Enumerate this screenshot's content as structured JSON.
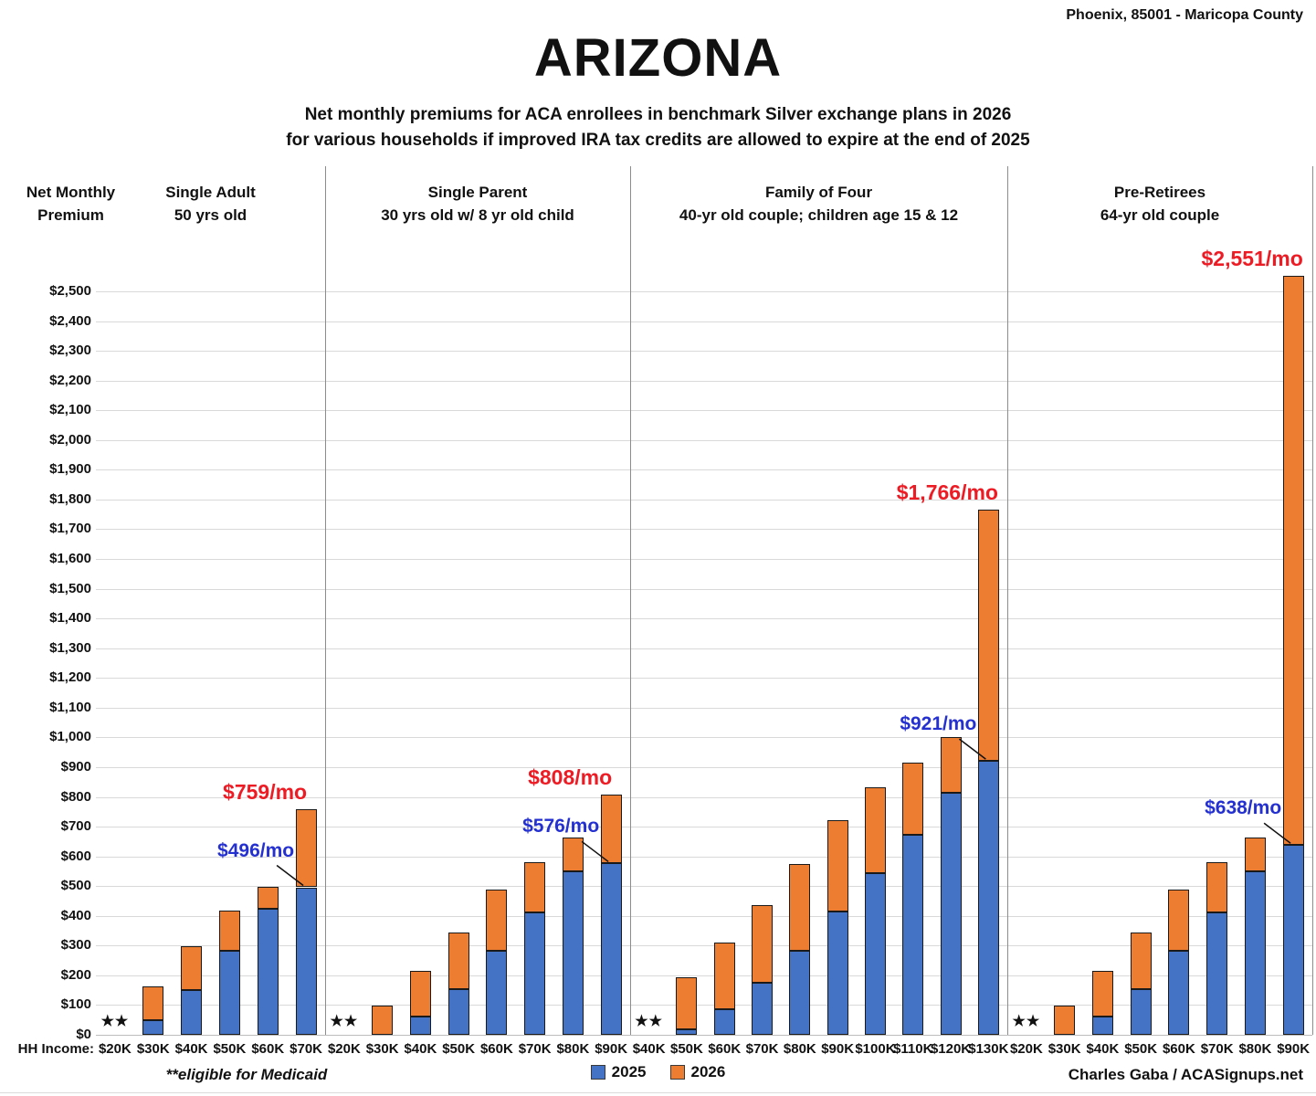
{
  "header": {
    "location": "Phoenix, 85001 - Maricopa County",
    "title": "ARIZONA",
    "subtitle_line1": "Net monthly premiums for ACA enrollees in benchmark Silver exchange plans in 2026",
    "subtitle_line2": "for various households if improved IRA tax credits are allowed to expire at the end of 2025"
  },
  "y_axis": {
    "label_line1": "Net Monthly",
    "label_line2": "Premium",
    "min": 0,
    "max": 2500,
    "step": 100,
    "prefix": "$"
  },
  "x_axis": {
    "label": "HH Income:"
  },
  "legend": {
    "items": [
      {
        "label": "2025",
        "color": "#4472C4"
      },
      {
        "label": "2026",
        "color": "#ED7D31"
      }
    ]
  },
  "footnote": "**eligible for Medicaid",
  "credit": "Charles Gaba / ACASignups.net",
  "medicaid_marker": "★★",
  "chart_data": {
    "type": "bar",
    "title": "ARIZONA",
    "ylabel": "Net Monthly Premium",
    "xlabel": "HH Income",
    "ylim": [
      0,
      2500
    ],
    "grid": true,
    "legend_position": "bottom-center",
    "colors": {
      "2025": "#4472C4",
      "2026": "#ED7D31"
    },
    "note": "2026 bar is total net premium; 2025 value overlays it from $0, so orange portion shows the increase. null = eligible for Medicaid (no bar).",
    "panels": [
      {
        "title_line1": "Single Adult",
        "title_line2": "50 yrs old",
        "categories": [
          "$20K",
          "$30K",
          "$40K",
          "$50K",
          "$60K",
          "$70K"
        ],
        "series": [
          {
            "name": "2025",
            "values": [
              null,
              48,
              150,
              283,
              424,
              496
            ]
          },
          {
            "name": "2026",
            "values": [
              null,
              163,
              297,
              417,
              499,
              759
            ]
          }
        ],
        "medicaid": [
          true,
          false,
          false,
          false,
          false,
          false
        ],
        "annotations": {
          "blue_2025": "$496/mo",
          "red_2026": "$759/mo"
        }
      },
      {
        "title_line1": "Single Parent",
        "title_line2": "30 yrs old w/ 8 yr old child",
        "categories": [
          "$20K",
          "$30K",
          "$40K",
          "$50K",
          "$60K",
          "$70K",
          "$80K",
          "$90K"
        ],
        "series": [
          {
            "name": "2025",
            "values": [
              null,
              0,
              60,
              155,
              284,
              413,
              551,
              576
            ]
          },
          {
            "name": "2026",
            "values": [
              null,
              97,
              215,
              344,
              488,
              580,
              663,
              808
            ]
          }
        ],
        "medicaid": [
          true,
          false,
          false,
          false,
          false,
          false,
          false,
          false
        ],
        "annotations": {
          "blue_2025": "$576/mo",
          "red_2026": "$808/mo"
        }
      },
      {
        "title_line1": "Family of Four",
        "title_line2": "40-yr old couple; children age 15 & 12",
        "categories": [
          "$40K",
          "$50K",
          "$60K",
          "$70K",
          "$80K",
          "$90K",
          "$100K",
          "$110K",
          "$120K",
          "$130K"
        ],
        "series": [
          {
            "name": "2025",
            "values": [
              null,
              19,
              85,
              175,
              283,
              415,
              545,
              672,
              813,
              921
            ]
          },
          {
            "name": "2026",
            "values": [
              null,
              193,
              310,
              437,
              574,
              721,
              832,
              916,
              1000,
              1766
            ]
          }
        ],
        "medicaid": [
          true,
          false,
          false,
          false,
          false,
          false,
          false,
          false,
          false,
          false
        ],
        "annotations": {
          "blue_2025": "$921/mo",
          "red_2026": "$1,766/mo"
        }
      },
      {
        "title_line1": "Pre-Retirees",
        "title_line2": "64-yr old couple",
        "categories": [
          "$20K",
          "$30K",
          "$40K",
          "$50K",
          "$60K",
          "$70K",
          "$80K",
          "$90K"
        ],
        "series": [
          {
            "name": "2025",
            "values": [
              null,
              0,
              60,
              155,
              284,
              413,
              551,
              638
            ]
          },
          {
            "name": "2026",
            "values": [
              null,
              97,
              215,
              344,
              488,
              580,
              663,
              2551
            ]
          }
        ],
        "medicaid": [
          true,
          false,
          false,
          false,
          false,
          false,
          false,
          false
        ],
        "annotations": {
          "blue_2025": "$638/mo",
          "red_2026": "$2,551/mo"
        }
      }
    ]
  }
}
